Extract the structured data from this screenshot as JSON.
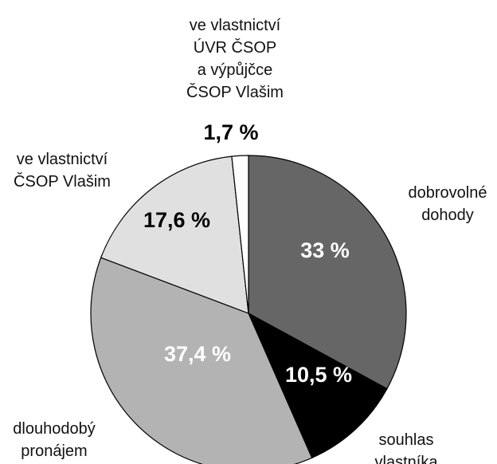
{
  "chart_data": {
    "type": "pie",
    "categories": [
      "dobrovolné\ndohody",
      "souhlas\nvlastníka",
      "dlouhodobý\npronájem",
      "ve vlastnictví\nČSOP Vlašim",
      "ve vlastnictví\nÚVR ČSOP\na výpůjčce\nČSOP Vlašim"
    ],
    "values": [
      33,
      10.5,
      37.4,
      17.6,
      1.7
    ],
    "value_labels": [
      "33 %",
      "10,5 %",
      "37,4 %",
      "17,6 %",
      "1,7 %"
    ],
    "colors": [
      "#666666",
      "#000000",
      "#b3b3b3",
      "#e0e0e0",
      "#ffffff"
    ]
  }
}
